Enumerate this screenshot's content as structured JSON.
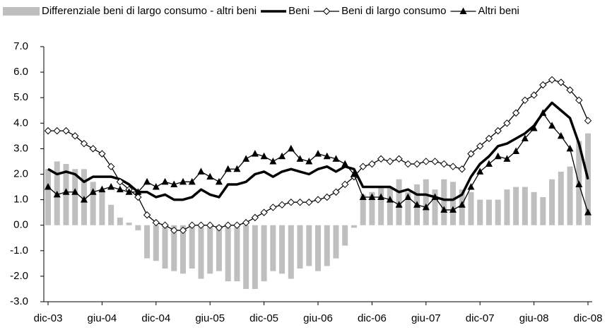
{
  "chart_data": {
    "type": "combo",
    "categories": [
      "dic-03",
      null,
      null,
      null,
      null,
      null,
      "giu-04",
      null,
      null,
      null,
      null,
      null,
      "dic-04",
      null,
      null,
      null,
      null,
      null,
      "giu-05",
      null,
      null,
      null,
      null,
      null,
      "dic-05",
      null,
      null,
      null,
      null,
      null,
      "giu-06",
      null,
      null,
      null,
      null,
      null,
      "dic-06",
      null,
      null,
      null,
      null,
      null,
      "giu-07",
      null,
      null,
      null,
      null,
      null,
      "dic-07",
      null,
      null,
      null,
      null,
      null,
      "giu-08",
      null,
      null,
      null,
      null,
      null,
      "dic-08"
    ],
    "series": [
      {
        "name": "Differenziale beni di largo consumo - altri beni",
        "type": "bar",
        "color": "#bfbfbf",
        "values": [
          2.2,
          2.5,
          2.4,
          2.2,
          2.2,
          1.7,
          1.4,
          0.8,
          0.3,
          0.1,
          -0.2,
          -1.3,
          -1.4,
          -1.7,
          -1.8,
          -1.9,
          -1.7,
          -2.1,
          -1.9,
          -1.8,
          -2.2,
          -2.2,
          -2.5,
          -2.5,
          -2.2,
          -1.8,
          -1.9,
          -2.1,
          -1.7,
          -1.6,
          -1.8,
          -1.6,
          -1.3,
          -0.8,
          -0.1,
          1.2,
          1.3,
          1.5,
          1.5,
          1.8,
          1.3,
          1.6,
          1.8,
          1.4,
          1.8,
          1.7,
          1.4,
          1.3,
          1.0,
          1.0,
          1.0,
          1.4,
          1.5,
          1.5,
          1.3,
          1.1,
          1.8,
          2.1,
          2.3,
          3.3,
          3.6
        ]
      },
      {
        "name": "Beni",
        "type": "line",
        "color": "#000000",
        "values": [
          2.2,
          2.0,
          2.1,
          2.0,
          1.7,
          1.9,
          1.9,
          1.9,
          1.8,
          1.6,
          1.3,
          1.3,
          1.1,
          1.2,
          1.0,
          1.0,
          1.1,
          1.4,
          1.2,
          1.1,
          1.6,
          1.6,
          1.7,
          2.0,
          2.1,
          1.9,
          2.1,
          2.2,
          2.1,
          2.0,
          2.2,
          2.3,
          2.1,
          2.3,
          2.2,
          1.5,
          1.5,
          1.5,
          1.5,
          1.3,
          1.4,
          1.2,
          1.2,
          1.1,
          1.0,
          1.0,
          1.2,
          1.9,
          2.4,
          2.7,
          3.1,
          3.2,
          3.4,
          3.6,
          3.9,
          4.4,
          4.8,
          4.5,
          4.2,
          3.2,
          1.8
        ]
      },
      {
        "name": "Beni di largo consumo",
        "type": "line",
        "marker": "diamond",
        "color": "#000000",
        "values": [
          3.7,
          3.7,
          3.7,
          3.5,
          3.2,
          3.0,
          2.8,
          2.3,
          1.7,
          1.4,
          1.1,
          0.4,
          0.1,
          0.0,
          -0.2,
          -0.2,
          0.0,
          0.0,
          0.0,
          -0.1,
          0.0,
          0.0,
          0.1,
          0.3,
          0.5,
          0.7,
          0.8,
          0.9,
          0.9,
          0.9,
          1.0,
          1.1,
          1.3,
          1.6,
          1.9,
          2.3,
          2.4,
          2.6,
          2.5,
          2.6,
          2.4,
          2.4,
          2.5,
          2.5,
          2.4,
          2.3,
          2.2,
          2.8,
          3.1,
          3.4,
          3.7,
          4.0,
          4.4,
          4.9,
          5.1,
          5.5,
          5.7,
          5.6,
          5.3,
          4.9,
          4.1
        ]
      },
      {
        "name": "Altri beni",
        "type": "line",
        "marker": "triangle",
        "color": "#000000",
        "values": [
          1.5,
          1.2,
          1.3,
          1.3,
          1.0,
          1.3,
          1.4,
          1.5,
          1.4,
          1.3,
          1.3,
          1.7,
          1.5,
          1.7,
          1.6,
          1.7,
          1.7,
          2.1,
          1.9,
          1.7,
          2.2,
          2.2,
          2.6,
          2.8,
          2.7,
          2.5,
          2.7,
          3.0,
          2.6,
          2.5,
          2.8,
          2.7,
          2.6,
          2.4,
          2.0,
          1.1,
          1.1,
          1.1,
          1.0,
          0.8,
          1.1,
          0.8,
          0.7,
          1.1,
          0.6,
          0.6,
          0.8,
          1.5,
          2.1,
          2.4,
          2.7,
          2.6,
          2.9,
          3.4,
          3.8,
          4.4,
          3.9,
          3.5,
          3.0,
          1.6,
          0.5
        ]
      }
    ],
    "ylim": [
      -3,
      7
    ],
    "yticks": [
      {
        "value": -3,
        "label": "-3.0"
      },
      {
        "value": -2,
        "label": "-2.0"
      },
      {
        "value": -1,
        "label": "-1.0"
      },
      {
        "value": 0,
        "label": "0.0"
      },
      {
        "value": 1,
        "label": "1.0"
      },
      {
        "value": 2,
        "label": "2.0"
      },
      {
        "value": 3,
        "label": "3.0"
      },
      {
        "value": 4,
        "label": "4.0"
      },
      {
        "value": 5,
        "label": "5.0"
      },
      {
        "value": 6,
        "label": "6.0"
      },
      {
        "value": 7,
        "label": "7.0"
      }
    ],
    "legend": "top",
    "grid": false
  }
}
